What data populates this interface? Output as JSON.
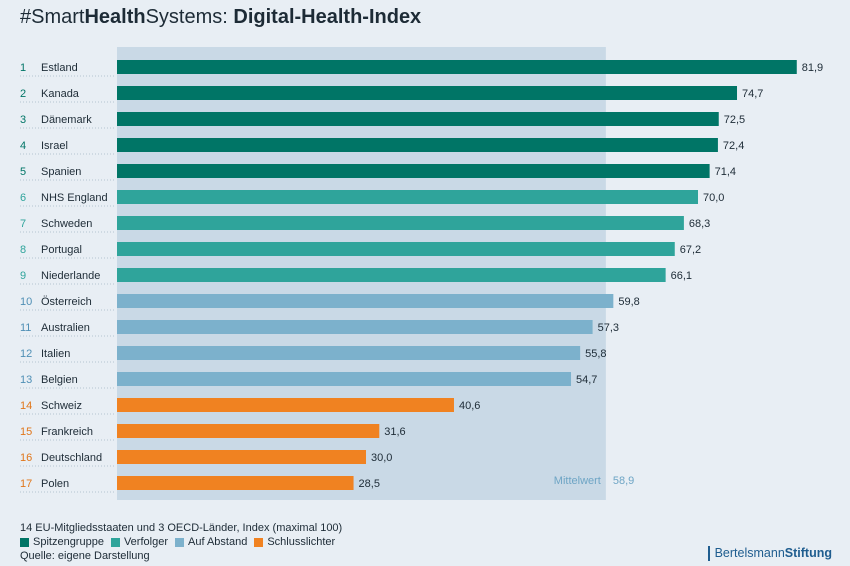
{
  "title": {
    "prefix": "#Smart",
    "bold1": "Health",
    "middle": "Systems: ",
    "bold2": "Digital-Health-Index"
  },
  "chart_data": {
    "type": "bar",
    "orientation": "horizontal",
    "xlim": [
      0,
      100
    ],
    "ranks": [
      "1",
      "2",
      "3",
      "4",
      "5",
      "6",
      "7",
      "8",
      "9",
      "10",
      "11",
      "12",
      "13",
      "14",
      "15",
      "16",
      "17"
    ],
    "categories": [
      "Estland",
      "Kanada",
      "Dänemark",
      "Israel",
      "Spanien",
      "NHS England",
      "Schweden",
      "Portugal",
      "Niederlande",
      "Österreich",
      "Australien",
      "Italien",
      "Belgien",
      "Schweiz",
      "Frankreich",
      "Deutschland",
      "Polen"
    ],
    "values": [
      81.9,
      74.7,
      72.5,
      72.4,
      71.4,
      70.0,
      68.3,
      67.2,
      66.1,
      59.8,
      57.3,
      55.8,
      54.7,
      40.6,
      31.6,
      30.0,
      28.5
    ],
    "value_labels": [
      "81,9",
      "74,7",
      "72,5",
      "72,4",
      "71,4",
      "70,0",
      "68,3",
      "67,2",
      "66,1",
      "59,8",
      "57,3",
      "55,8",
      "54,7",
      "40,6",
      "31,6",
      "30,0",
      "28,5"
    ],
    "groups": [
      0,
      0,
      0,
      0,
      0,
      1,
      1,
      1,
      1,
      2,
      2,
      2,
      2,
      3,
      3,
      3,
      3
    ],
    "group_names": [
      "Spitzengruppe",
      "Verfolger",
      "Auf Abstand",
      "Schlusslichter"
    ],
    "group_colors": [
      "#007566",
      "#2fa49b",
      "#7cb1cc",
      "#f08221"
    ],
    "mean": {
      "label": "Mittelwert",
      "value": 58.9,
      "value_label": "58,9"
    }
  },
  "footer": {
    "note": "14 EU-Mitgliedsstaaten und 3 OECD-Länder, Index (maximal 100)",
    "source": "Quelle: eigene Darstellung"
  },
  "brand": {
    "part1": "Bertelsmann",
    "part2": "Stiftung"
  }
}
